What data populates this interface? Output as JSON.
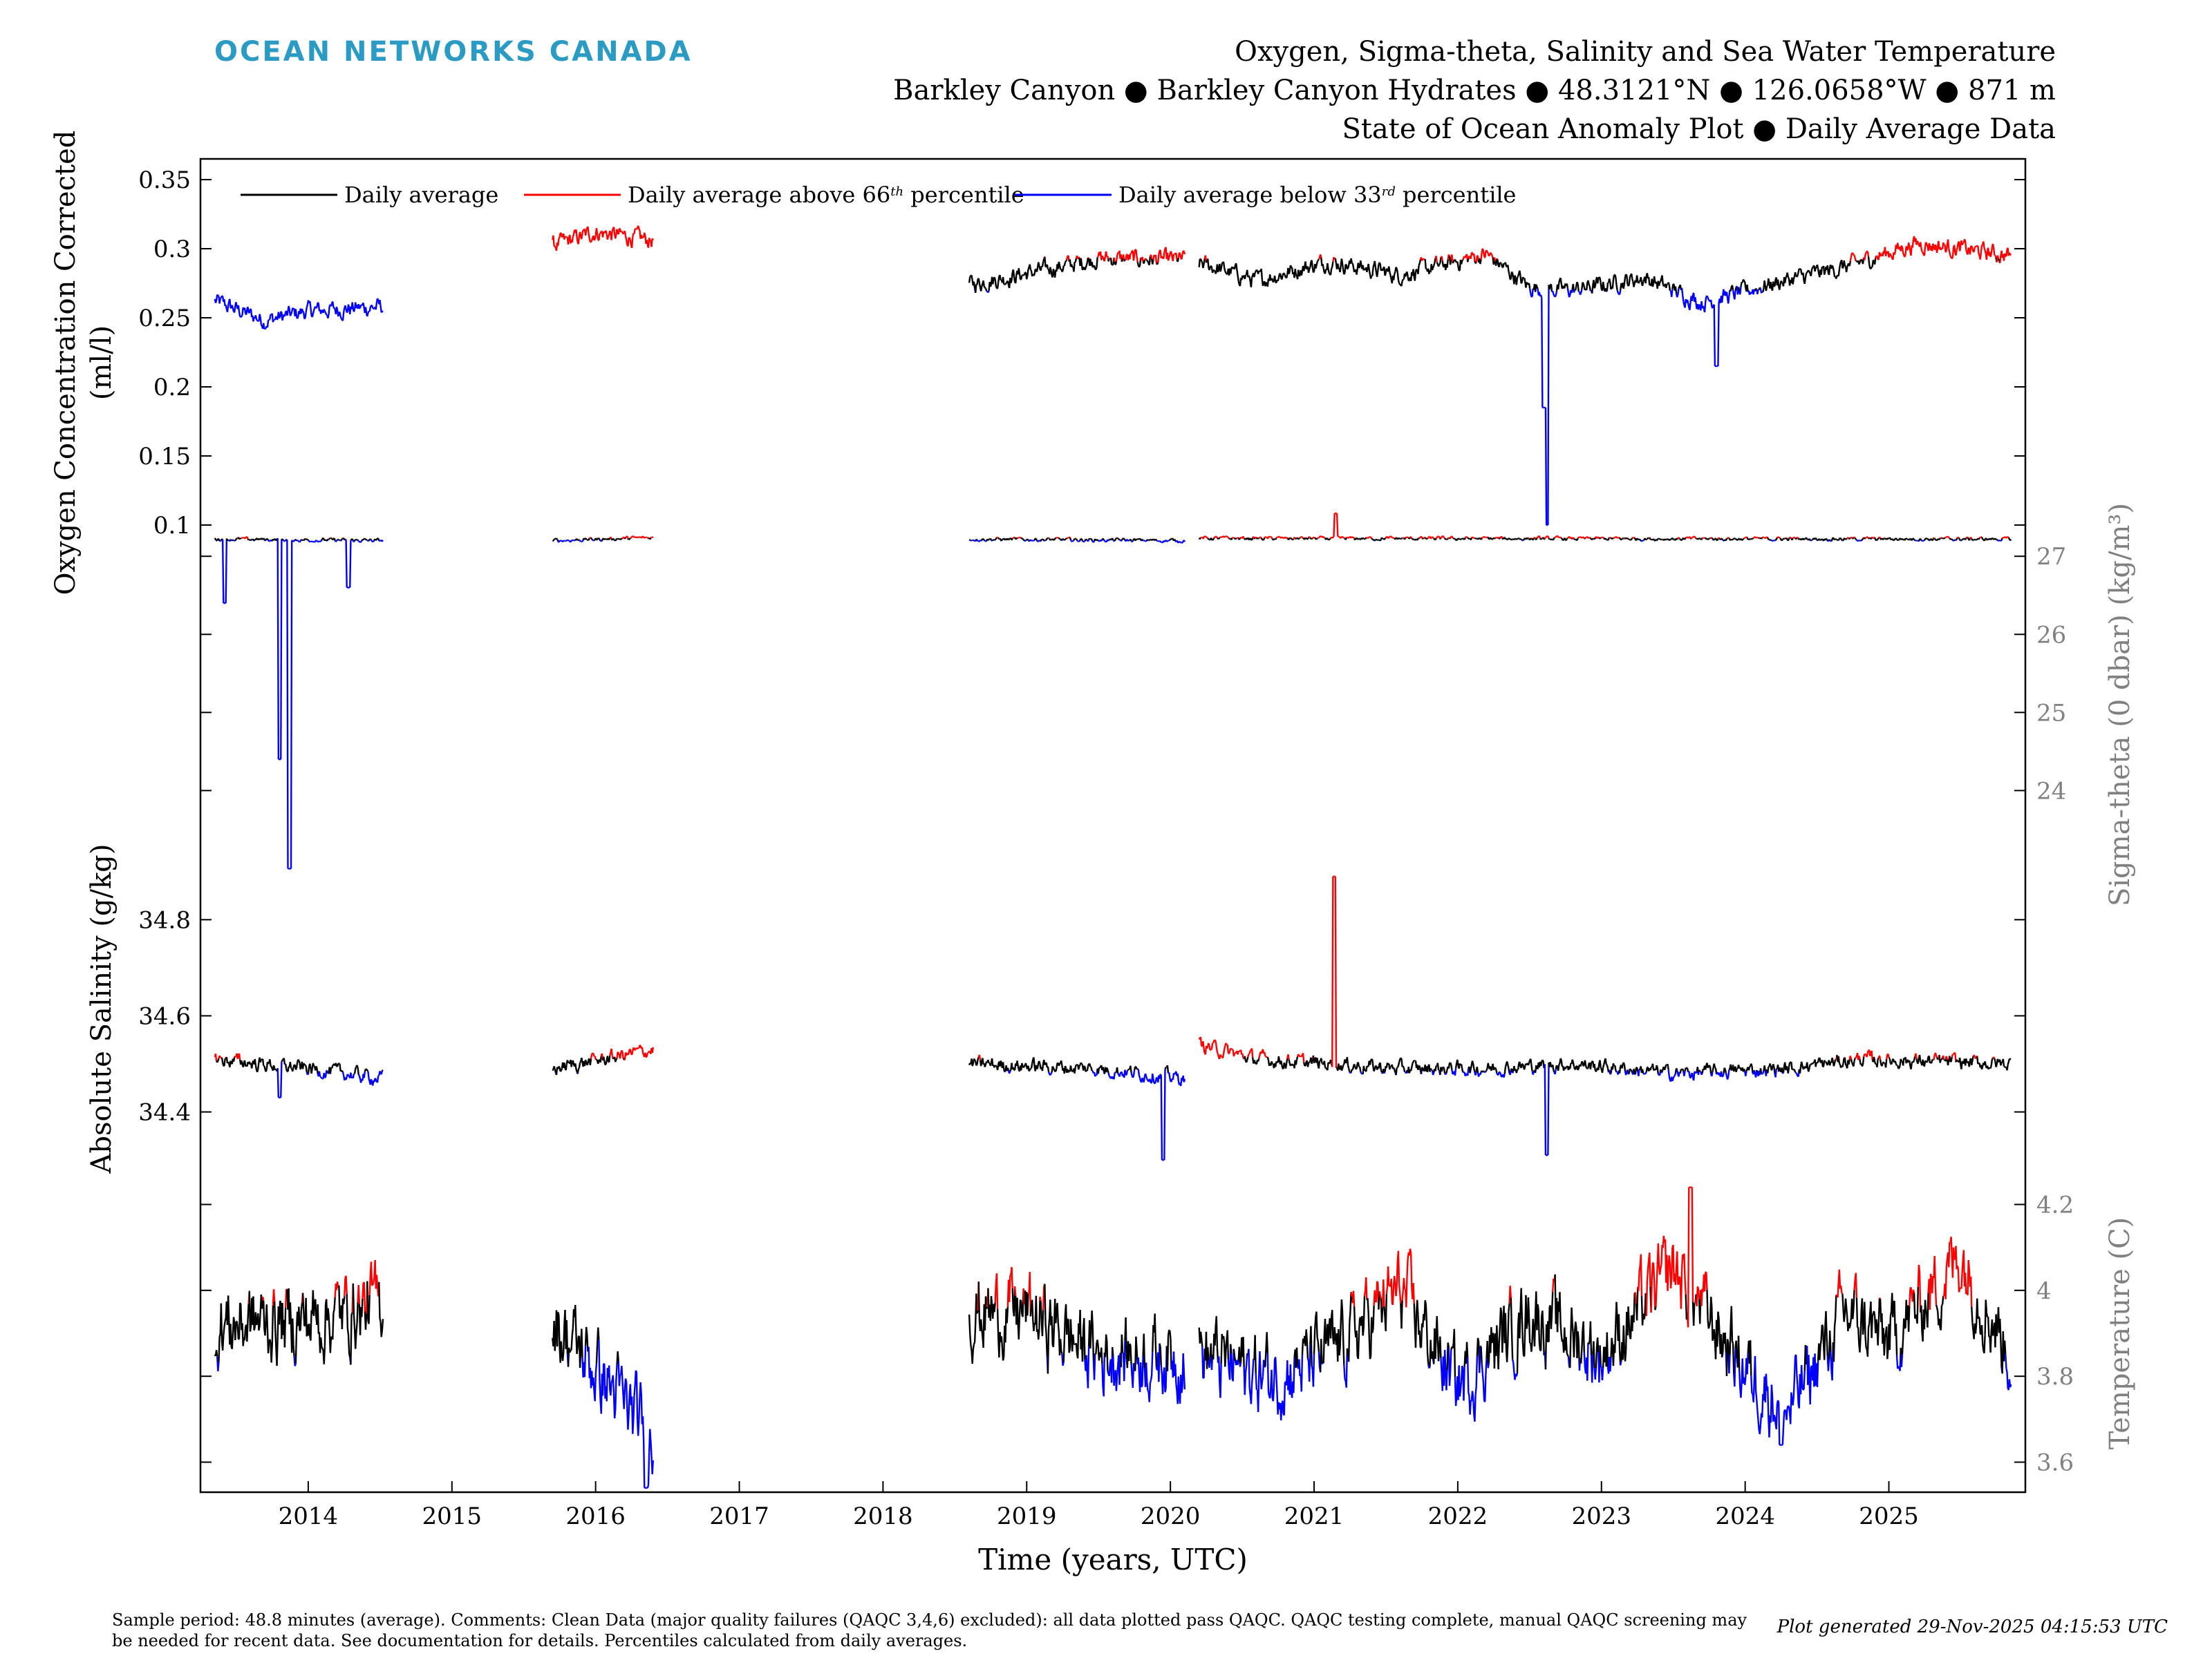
{
  "header": {
    "logo_text": "OCEAN NETWORKS CANADA",
    "title_line1": "Oxygen, Sigma-theta, Salinity and Sea Water Temperature",
    "title_line2": "Barkley Canyon ● Barkley Canyon Hydrates ● 48.3121°N ● 126.0658°W ● 871 m",
    "title_line3": "State of Ocean Anomaly Plot ● Daily Average Data"
  },
  "footer": {
    "comments": "Sample period: 48.8 minutes (average). Comments: Clean Data (major quality failures (QAQC 3,4,6) excluded): all data plotted pass QAQC. QAQC testing complete, manual QAQC screening may be needed for recent data. See documentation for details. Percentiles calculated from daily averages.",
    "generated": "Plot generated 29-Nov-2025 04:15:53 UTC"
  },
  "colors": {
    "daily": "#000000",
    "above": "#ff0000",
    "below": "#0000ff",
    "axis": "#000000",
    "right_axis_text": "#808080",
    "logo": "#2b9bc4"
  },
  "chart_data": {
    "type": "line",
    "x_axis": {
      "label": "Time (years, UTC)",
      "ticks": [
        "2014",
        "2015",
        "2016",
        "2017",
        "2018",
        "2019",
        "2020",
        "2021",
        "2022",
        "2023",
        "2024",
        "2025"
      ],
      "range": [
        2013.25,
        2025.95
      ]
    },
    "legend": {
      "placement": "top-left",
      "entries": [
        {
          "key": "daily",
          "html": "Daily average"
        },
        {
          "key": "above",
          "html": "Daily average above 66<tspan font-style='italic' font-size='18' dy='-10'>th</tspan><tspan dy='10'> percentile</tspan>"
        },
        {
          "key": "below",
          "html": "Daily average below 33<tspan font-style='italic' font-size='18' dy='-10'>rd</tspan><tspan dy='10'> percentile</tspan>"
        }
      ]
    },
    "data_segments": [
      [
        2013.35,
        2014.52
      ],
      [
        2015.7,
        2016.4
      ],
      [
        2018.6,
        2020.1
      ],
      [
        2020.2,
        2025.85
      ]
    ],
    "panels": [
      {
        "name": "oxygen",
        "side": "left",
        "ylabel": [
          "Oxygen Concentration Corrected",
          "(ml/l)"
        ],
        "ylim": [
          0.07,
          0.365
        ],
        "ticks": [
          {
            "v": 0.1,
            "t": "0.1"
          },
          {
            "v": 0.15,
            "t": "0.15"
          },
          {
            "v": 0.2,
            "t": "0.2"
          },
          {
            "v": 0.25,
            "t": "0.25"
          },
          {
            "v": 0.3,
            "t": "0.3"
          },
          {
            "v": 0.35,
            "t": "0.35"
          }
        ],
        "trend": [
          [
            2013.35,
            0.262
          ],
          [
            2013.7,
            0.248
          ],
          [
            2014.0,
            0.255
          ],
          [
            2014.52,
            0.258
          ],
          [
            2015.7,
            0.302
          ],
          [
            2016.0,
            0.312
          ],
          [
            2016.4,
            0.306
          ],
          [
            2018.6,
            0.274
          ],
          [
            2019.0,
            0.282
          ],
          [
            2019.5,
            0.293
          ],
          [
            2020.1,
            0.292
          ],
          [
            2020.2,
            0.29
          ],
          [
            2020.6,
            0.277
          ],
          [
            2021.1,
            0.291
          ],
          [
            2021.6,
            0.281
          ],
          [
            2022.2,
            0.296
          ],
          [
            2022.5,
            0.272
          ],
          [
            2022.8,
            0.27
          ],
          [
            2023.3,
            0.279
          ],
          [
            2023.7,
            0.261
          ],
          [
            2024.2,
            0.275
          ],
          [
            2024.7,
            0.287
          ],
          [
            2025.2,
            0.304
          ],
          [
            2025.85,
            0.295
          ]
        ],
        "noise": 0.005,
        "lo": 0.27,
        "hi": 0.292,
        "spikes": [
          [
            2022.62,
            0.1
          ],
          [
            2023.8,
            0.215
          ],
          [
            2022.6,
            0.185
          ]
        ]
      },
      {
        "name": "sigma-theta",
        "side": "right",
        "ylabel": [
          "Sigma-theta (0 dbar) (kg/m³)"
        ],
        "ylim": [
          22.8,
          27.4
        ],
        "ticks": [
          {
            "v": 24,
            "t": "24"
          },
          {
            "v": 25,
            "t": "25"
          },
          {
            "v": 26,
            "t": "26"
          },
          {
            "v": 27,
            "t": "27"
          }
        ],
        "trend": [
          [
            2013.35,
            27.22
          ],
          [
            2014.52,
            27.2
          ],
          [
            2015.7,
            27.2
          ],
          [
            2016.4,
            27.24
          ],
          [
            2018.6,
            27.22
          ],
          [
            2020.1,
            27.2
          ],
          [
            2020.2,
            27.23
          ],
          [
            2025.85,
            27.22
          ]
        ],
        "noise": 0.02,
        "lo": 27.205,
        "hi": 27.232,
        "spikes": [
          [
            2013.8,
            24.4
          ],
          [
            2013.87,
            23.0
          ],
          [
            2013.42,
            26.4
          ],
          [
            2014.28,
            26.6
          ],
          [
            2021.15,
            27.55
          ]
        ]
      },
      {
        "name": "salinity",
        "side": "left",
        "ylabel": [
          "Absolute Salinity (g/kg)"
        ],
        "ylim": [
          34.27,
          34.96
        ],
        "ticks": [
          {
            "v": 34.4,
            "t": "34.4"
          },
          {
            "v": 34.6,
            "t": "34.6"
          },
          {
            "v": 34.8,
            "t": "34.8"
          }
        ],
        "trend": [
          [
            2013.35,
            34.51
          ],
          [
            2014.0,
            34.49
          ],
          [
            2014.52,
            34.47
          ],
          [
            2015.7,
            34.49
          ],
          [
            2016.4,
            34.53
          ],
          [
            2018.6,
            34.5
          ],
          [
            2019.5,
            34.49
          ],
          [
            2020.1,
            34.47
          ],
          [
            2020.2,
            34.54
          ],
          [
            2020.6,
            34.51
          ],
          [
            2021.1,
            34.5
          ],
          [
            2021.6,
            34.49
          ],
          [
            2022.2,
            34.49
          ],
          [
            2022.8,
            34.5
          ],
          [
            2023.5,
            34.48
          ],
          [
            2024.3,
            34.49
          ],
          [
            2024.8,
            34.51
          ],
          [
            2025.85,
            34.5
          ]
        ],
        "noise": 0.012,
        "lo": 34.484,
        "hi": 34.512,
        "spikes": [
          [
            2013.8,
            34.43
          ],
          [
            2019.95,
            34.3
          ],
          [
            2021.14,
            34.89
          ],
          [
            2022.62,
            34.31
          ]
        ]
      },
      {
        "name": "temperature",
        "side": "right",
        "ylabel": [
          "Temperature (C)"
        ],
        "ylim": [
          3.53,
          4.27
        ],
        "ticks": [
          {
            "v": 3.6,
            "t": "3.6"
          },
          {
            "v": 3.8,
            "t": "3.8"
          },
          {
            "v": 4.0,
            "t": "4"
          },
          {
            "v": 4.2,
            "t": "4.2"
          }
        ],
        "trend": [
          [
            2013.35,
            3.92
          ],
          [
            2014.0,
            3.93
          ],
          [
            2014.52,
            3.97
          ],
          [
            2015.7,
            3.93
          ],
          [
            2016.0,
            3.82
          ],
          [
            2016.4,
            3.65
          ],
          [
            2018.6,
            3.95
          ],
          [
            2019.0,
            3.95
          ],
          [
            2019.5,
            3.85
          ],
          [
            2020.1,
            3.85
          ],
          [
            2020.2,
            3.85
          ],
          [
            2020.7,
            3.8
          ],
          [
            2021.1,
            3.85
          ],
          [
            2021.6,
            4.0
          ],
          [
            2022.0,
            3.78
          ],
          [
            2022.5,
            3.95
          ],
          [
            2023.0,
            3.85
          ],
          [
            2023.5,
            4.05
          ],
          [
            2024.0,
            3.82
          ],
          [
            2024.3,
            3.72
          ],
          [
            2024.7,
            3.95
          ],
          [
            2025.0,
            3.88
          ],
          [
            2025.5,
            4.08
          ],
          [
            2025.85,
            3.85
          ]
        ],
        "noise": 0.07,
        "lo": 3.84,
        "hi": 3.98,
        "spikes": [
          [
            2016.35,
            3.54
          ],
          [
            2023.62,
            4.24
          ],
          [
            2024.25,
            3.64
          ]
        ]
      }
    ]
  }
}
